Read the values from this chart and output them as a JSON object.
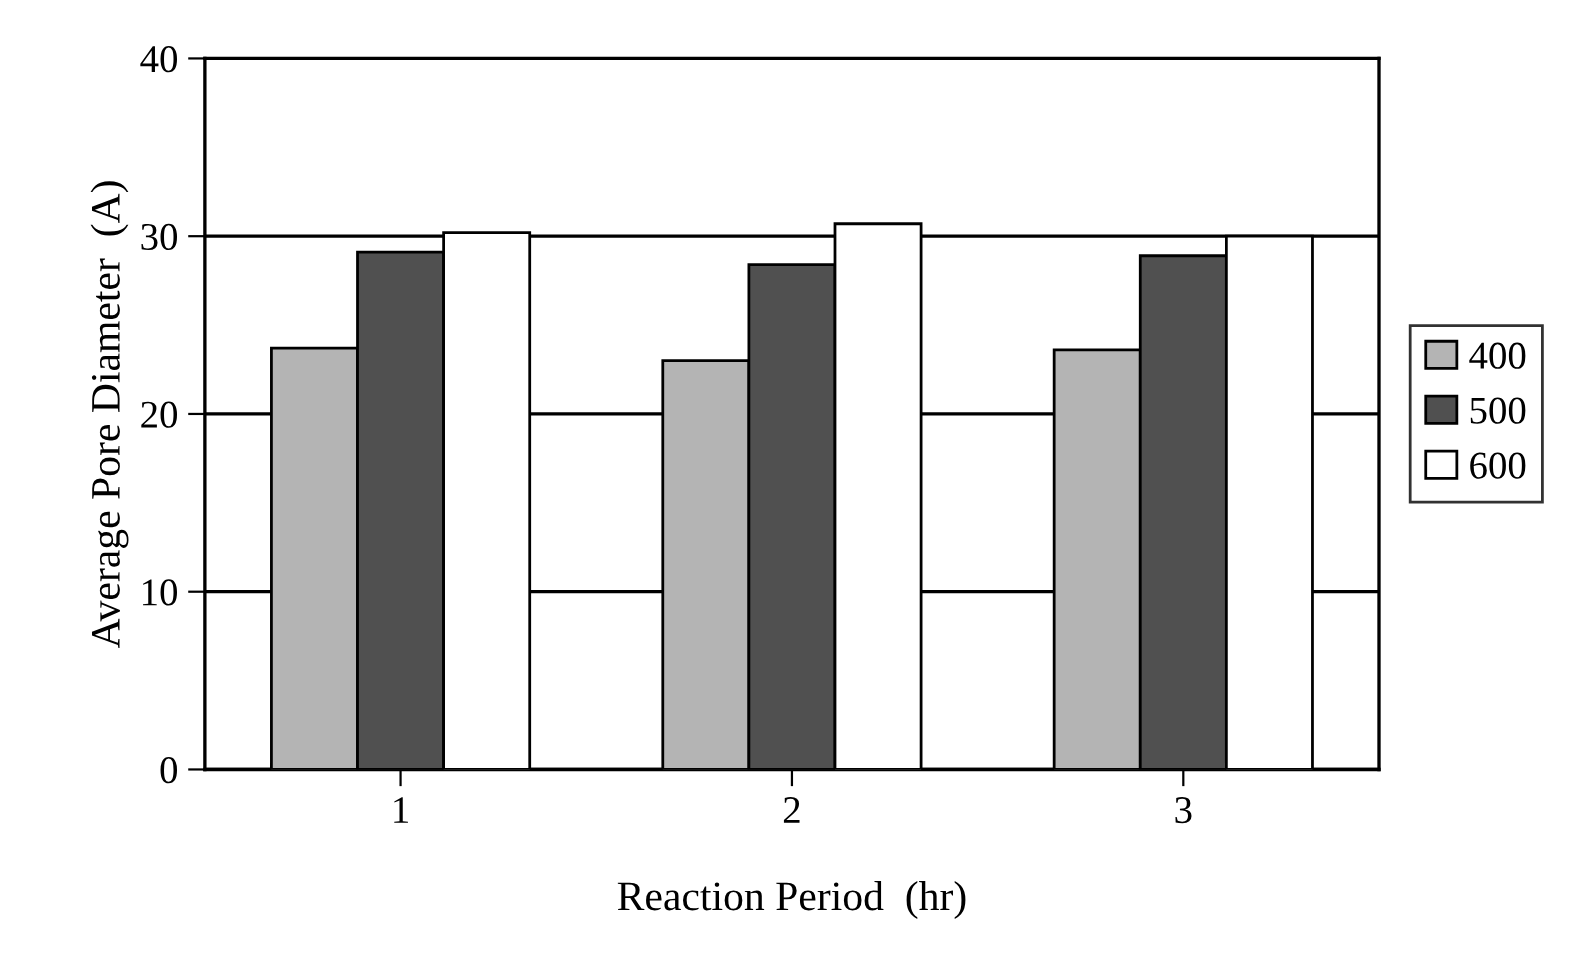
{
  "chart_data": {
    "type": "bar",
    "xlabel": "Reaction Period  (hr)",
    "ylabel": "Average Pore Diameter  (A)",
    "categories": [
      "1",
      "2",
      "3"
    ],
    "series": [
      {
        "name": "400",
        "color": "#b4b4b4",
        "values": [
          23.7,
          23.0,
          23.6
        ]
      },
      {
        "name": "500",
        "color": "#505050",
        "values": [
          29.1,
          28.4,
          28.9
        ]
      },
      {
        "name": "600",
        "color": "#ffffff",
        "values": [
          30.2,
          30.7,
          30.0
        ]
      }
    ],
    "ylim": [
      0,
      40
    ],
    "yticks": [
      0,
      10,
      20,
      30,
      40
    ],
    "grid": "y",
    "legend": "right"
  }
}
